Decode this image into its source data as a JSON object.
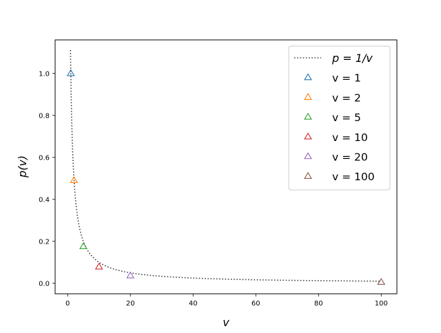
{
  "chart_data": {
    "type": "scatter",
    "xlabel": "v",
    "ylabel": "p(v)",
    "xlim": [
      -4,
      105
    ],
    "ylim": [
      -0.05,
      1.16
    ],
    "xticks": [
      0,
      20,
      40,
      60,
      80,
      100
    ],
    "yticks": [
      0.0,
      0.2,
      0.4,
      0.6,
      0.8,
      1.0
    ],
    "xtick_labels": [
      "0",
      "20",
      "40",
      "60",
      "80",
      "100"
    ],
    "ytick_labels": [
      "0.0",
      "0.2",
      "0.4",
      "0.6",
      "0.8",
      "1.0"
    ],
    "grid": false,
    "legend_position": "top-right",
    "curve": {
      "name": "p = 1/v",
      "formula": "1/v",
      "x_range": [
        0.9,
        100
      ],
      "style": "dotted",
      "color": "#404040"
    },
    "series": [
      {
        "name": "v = 1",
        "x": 1,
        "y": 1.0,
        "marker": "triangle-open",
        "color": "#1f77b4"
      },
      {
        "name": "v = 2",
        "x": 2,
        "y": 0.49,
        "marker": "triangle-open",
        "color": "#ff7f0e"
      },
      {
        "name": "v = 5",
        "x": 5,
        "y": 0.175,
        "marker": "triangle-open",
        "color": "#2ca02c"
      },
      {
        "name": "v = 10",
        "x": 10,
        "y": 0.078,
        "marker": "triangle-open",
        "color": "#d62728"
      },
      {
        "name": "v = 20",
        "x": 20,
        "y": 0.036,
        "marker": "triangle-open",
        "color": "#9467bd"
      },
      {
        "name": "v = 100",
        "x": 100,
        "y": 0.005,
        "marker": "triangle-open",
        "color": "#8c564b"
      }
    ]
  }
}
